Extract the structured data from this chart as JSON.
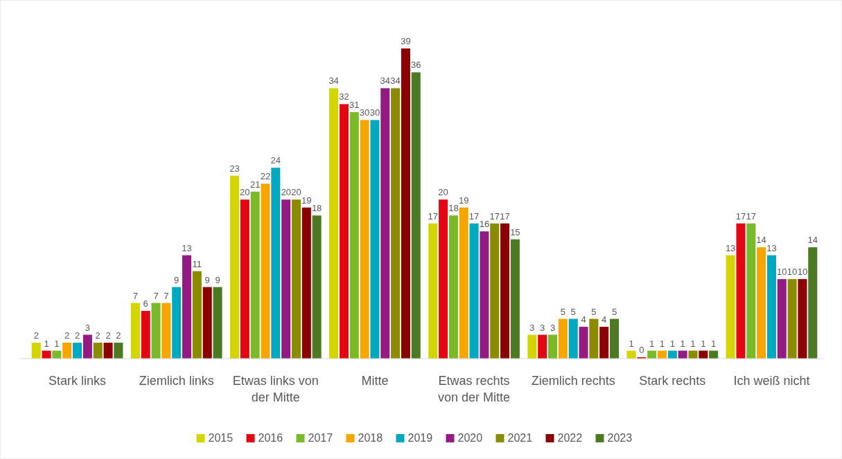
{
  "chart_data": {
    "type": "bar",
    "categories": [
      "Stark links",
      "Ziemlich links",
      "Etwas links von der Mitte",
      "Mitte",
      "Etwas rechts von der Mitte",
      "Ziemlich rechts",
      "Stark rechts",
      "Ich weiß nicht"
    ],
    "series": [
      {
        "name": "2015",
        "color": "#d4d400",
        "values": [
          2,
          7,
          23,
          34,
          17,
          3,
          1,
          13
        ]
      },
      {
        "name": "2016",
        "color": "#e30613",
        "values": [
          1,
          6,
          20,
          32,
          20,
          3,
          0,
          17
        ]
      },
      {
        "name": "2017",
        "color": "#7ab929",
        "values": [
          1,
          7,
          21,
          31,
          18,
          3,
          1,
          17
        ]
      },
      {
        "name": "2018",
        "color": "#f7a600",
        "values": [
          2,
          7,
          22,
          30,
          19,
          5,
          1,
          14
        ]
      },
      {
        "name": "2019",
        "color": "#00a9c0",
        "values": [
          2,
          9,
          24,
          30,
          17,
          5,
          1,
          13
        ]
      },
      {
        "name": "2020",
        "color": "#941a84",
        "values": [
          3,
          13,
          20,
          34,
          16,
          4,
          1,
          10
        ]
      },
      {
        "name": "2021",
        "color": "#8b8b00",
        "values": [
          2,
          11,
          20,
          34,
          17,
          5,
          1,
          10
        ]
      },
      {
        "name": "2022",
        "color": "#8b0000",
        "values": [
          2,
          9,
          19,
          39,
          17,
          4,
          1,
          10
        ]
      },
      {
        "name": "2023",
        "color": "#4b7a22",
        "values": [
          2,
          9,
          18,
          36,
          15,
          5,
          1,
          14
        ]
      }
    ],
    "data_labels": true,
    "legend": "bottom"
  }
}
